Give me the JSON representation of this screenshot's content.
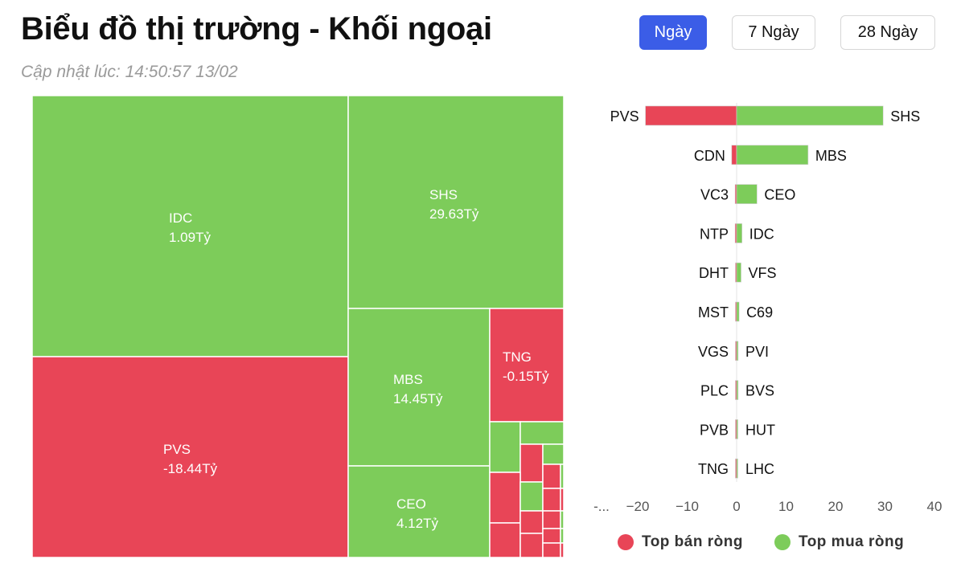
{
  "header": {
    "title": "Biểu đồ thị trường - Khối ngoại",
    "updated": "Cập nhật lúc: 14:50:57 13/02",
    "range_buttons": [
      "Ngày",
      "7 Ngày",
      "28 Ngày"
    ],
    "active_range": "Ngày"
  },
  "colors": {
    "positive": "#7dcc5a",
    "negative": "#e84557",
    "active_button": "#3b5de7"
  },
  "legend": {
    "sell": "Top bán ròng",
    "buy": "Top mua ròng"
  },
  "chart_data": [
    {
      "type": "treemap",
      "unit": "Tỷ",
      "tiles": [
        {
          "name": "IDC",
          "value": 1.09,
          "label": "1.09Tỷ",
          "sign": "positive"
        },
        {
          "name": "PVS",
          "value": -18.44,
          "label": "-18.44Tỷ",
          "sign": "negative"
        },
        {
          "name": "SHS",
          "value": 29.63,
          "label": "29.63Tỷ",
          "sign": "positive"
        },
        {
          "name": "MBS",
          "value": 14.45,
          "label": "14.45Tỷ",
          "sign": "positive"
        },
        {
          "name": "TNG",
          "value": -0.15,
          "label": "-0.15Tỷ",
          "sign": "negative"
        },
        {
          "name": "CEO",
          "value": 4.12,
          "label": "4.12Tỷ",
          "sign": "positive"
        }
      ]
    },
    {
      "type": "bar",
      "orientation": "horizontal",
      "x_ticks": [
        "-...",
        "−20",
        "−10",
        "0",
        "10",
        "20",
        "30",
        "40"
      ],
      "xlim": [
        -30,
        40
      ],
      "rows": [
        {
          "sell": "PVS",
          "sell_value": -18.44,
          "buy": "SHS",
          "buy_value": 29.63
        },
        {
          "sell": "CDN",
          "sell_value": -1.0,
          "buy": "MBS",
          "buy_value": 14.45
        },
        {
          "sell": "VC3",
          "sell_value": -0.3,
          "buy": "CEO",
          "buy_value": 4.12
        },
        {
          "sell": "NTP",
          "sell_value": -0.3,
          "buy": "IDC",
          "buy_value": 1.09
        },
        {
          "sell": "DHT",
          "sell_value": -0.2,
          "buy": "VFS",
          "buy_value": 0.9
        },
        {
          "sell": "MST",
          "sell_value": -0.2,
          "buy": "C69",
          "buy_value": 0.5
        },
        {
          "sell": "VGS",
          "sell_value": -0.2,
          "buy": "PVI",
          "buy_value": 0.3
        },
        {
          "sell": "PLC",
          "sell_value": -0.2,
          "buy": "BVS",
          "buy_value": 0.3
        },
        {
          "sell": "PVB",
          "sell_value": -0.15,
          "buy": "HUT",
          "buy_value": 0.25
        },
        {
          "sell": "TNG",
          "sell_value": -0.15,
          "buy": "LHC",
          "buy_value": 0.2
        }
      ],
      "legend_placement": "bottom"
    }
  ]
}
